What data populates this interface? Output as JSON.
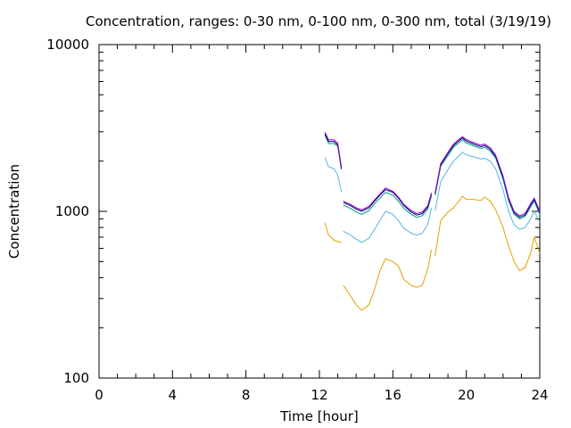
{
  "chart_data": {
    "type": "line",
    "title": "Concentration, ranges: 0-30 nm, 0-100 nm, 0-300 nm, total (3/19/19)",
    "xlabel": "Time [hour]",
    "ylabel": "Concentration",
    "xlim": [
      0,
      24
    ],
    "ylim": [
      100,
      10000
    ],
    "yscale": "log",
    "grid": false,
    "legend": "none",
    "x_ticks": [
      "0",
      "4",
      "8",
      "12",
      "16",
      "20",
      "24"
    ],
    "y_ticks": [
      "100",
      "1000",
      "10000"
    ],
    "series": [
      {
        "color": "#e69f00",
        "segments": [
          {
            "x": [
              12.3,
              12.5,
              12.8,
              13.2
            ],
            "y": [
              850,
              720,
              670,
              650
            ]
          },
          {
            "x": [
              13.3,
              13.7,
              14.0,
              14.3,
              14.7,
              15.0,
              15.3,
              15.6,
              16.0,
              16.3,
              16.6,
              17.0,
              17.3,
              17.6,
              17.9,
              18.1
            ],
            "y": [
              360,
              310,
              275,
              255,
              275,
              340,
              440,
              520,
              500,
              470,
              390,
              360,
              350,
              360,
              450,
              590
            ]
          },
          {
            "x": [
              18.3,
              18.6,
              19.0,
              19.3,
              19.6,
              19.8,
              20.0,
              20.4,
              20.8,
              21.0,
              21.3,
              21.6,
              22.0,
              22.3,
              22.6,
              22.9,
              23.2,
              23.5,
              23.7,
              24.0
            ],
            "y": [
              540,
              880,
              990,
              1050,
              1150,
              1230,
              1180,
              1180,
              1160,
              1220,
              1150,
              1020,
              800,
              620,
              500,
              440,
              460,
              560,
              700,
              560
            ]
          }
        ]
      },
      {
        "color": "#56b4e9",
        "segments": [
          {
            "x": [
              12.3,
              12.5,
              12.8,
              13.0,
              13.2
            ],
            "y": [
              2100,
              1850,
              1800,
              1650,
              1310
            ]
          },
          {
            "x": [
              13.3,
              13.7,
              14.0,
              14.3,
              14.7,
              15.0,
              15.3,
              15.6,
              16.0,
              16.3,
              16.6,
              17.0,
              17.3,
              17.6,
              17.9,
              18.1
            ],
            "y": [
              760,
              720,
              680,
              650,
              690,
              780,
              880,
              1000,
              960,
              880,
              790,
              740,
              720,
              740,
              830,
              1050
            ]
          },
          {
            "x": [
              18.3,
              18.6,
              19.0,
              19.3,
              19.6,
              19.8,
              20.0,
              20.4,
              20.8,
              21.0,
              21.3,
              21.6,
              22.0,
              22.3,
              22.6,
              22.9,
              23.2,
              23.5,
              23.7,
              24.0
            ],
            "y": [
              1010,
              1500,
              1780,
              2000,
              2150,
              2250,
              2180,
              2120,
              2060,
              2080,
              2000,
              1800,
              1350,
              1000,
              830,
              780,
              800,
              900,
              1000,
              860
            ]
          }
        ]
      },
      {
        "color": "#009e73",
        "segments": [
          {
            "x": [
              12.3,
              12.5,
              12.8,
              13.0,
              13.2
            ],
            "y": [
              2860,
              2550,
              2550,
              2450,
              1780
            ]
          },
          {
            "x": [
              13.3,
              13.7,
              14.0,
              14.3,
              14.7,
              15.0,
              15.3,
              15.6,
              16.0,
              16.3,
              16.6,
              17.0,
              17.3,
              17.6,
              17.9,
              18.1
            ],
            "y": [
              1090,
              1040,
              990,
              960,
              1010,
              1110,
              1200,
              1300,
              1250,
              1150,
              1040,
              960,
              920,
              940,
              1030,
              1240
            ]
          },
          {
            "x": [
              18.3,
              18.6,
              19.0,
              19.3,
              19.6,
              19.8,
              20.0,
              20.4,
              20.8,
              21.0,
              21.3,
              21.6,
              22.0,
              22.3,
              22.6,
              22.9,
              23.2,
              23.5,
              23.7,
              24.0
            ],
            "y": [
              1250,
              1860,
              2160,
              2420,
              2580,
              2680,
              2570,
              2470,
              2380,
              2420,
              2300,
              2080,
              1560,
              1160,
              960,
              900,
              930,
              1060,
              1150,
              960
            ]
          }
        ]
      },
      {
        "color": "#000080",
        "segments": [
          {
            "x": [
              12.3,
              12.5,
              12.8,
              13.0,
              13.2
            ],
            "y": [
              2920,
              2620,
              2620,
              2500,
              1800
            ]
          },
          {
            "x": [
              13.3,
              13.7,
              14.0,
              14.3,
              14.7,
              15.0,
              15.3,
              15.6,
              16.0,
              16.3,
              16.6,
              17.0,
              17.3,
              17.6,
              17.9,
              18.1
            ],
            "y": [
              1130,
              1080,
              1030,
              1000,
              1050,
              1150,
              1250,
              1350,
              1300,
              1200,
              1080,
              990,
              950,
              970,
              1060,
              1270
            ]
          },
          {
            "x": [
              18.3,
              18.6,
              19.0,
              19.3,
              19.6,
              19.8,
              20.0,
              20.4,
              20.8,
              21.0,
              21.3,
              21.6,
              22.0,
              22.3,
              22.6,
              22.9,
              23.2,
              23.5,
              23.7,
              24.0
            ],
            "y": [
              1270,
              1900,
              2220,
              2480,
              2650,
              2750,
              2640,
              2530,
              2440,
              2480,
              2360,
              2130,
              1600,
              1190,
              980,
              920,
              950,
              1090,
              1180,
              980
            ]
          }
        ]
      },
      {
        "color": "#9400d3",
        "segments": [
          {
            "x": [
              12.3,
              12.5,
              12.8,
              13.0,
              13.2
            ],
            "y": [
              2980,
              2680,
              2680,
              2560,
              1840
            ]
          },
          {
            "x": [
              13.3,
              13.7,
              14.0,
              14.3,
              14.7,
              15.0,
              15.3,
              15.6,
              16.0,
              16.3,
              16.6,
              17.0,
              17.3,
              17.6,
              17.9,
              18.1
            ],
            "y": [
              1150,
              1100,
              1050,
              1020,
              1070,
              1170,
              1270,
              1380,
              1320,
              1220,
              1100,
              1010,
              970,
              990,
              1080,
              1290
            ]
          },
          {
            "x": [
              18.3,
              18.6,
              19.0,
              19.3,
              19.6,
              19.8,
              20.0,
              20.4,
              20.8,
              21.0,
              21.3,
              21.6,
              22.0,
              22.3,
              22.6,
              22.9,
              23.2,
              23.5,
              23.7,
              24.0
            ],
            "y": [
              1290,
              1930,
              2260,
              2530,
              2700,
              2800,
              2690,
              2580,
              2490,
              2530,
              2410,
              2170,
              1630,
              1210,
              1000,
              940,
              970,
              1110,
              1200,
              1000
            ]
          }
        ]
      }
    ]
  }
}
